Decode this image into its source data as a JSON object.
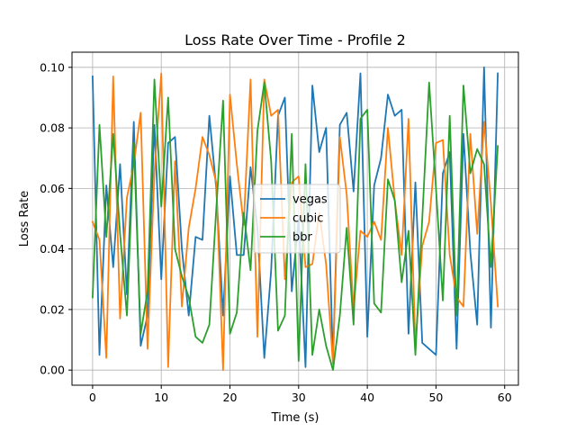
{
  "chart_data": {
    "type": "line",
    "title": "Loss Rate Over Time - Profile 2",
    "xlabel": "Time (s)",
    "ylabel": "Loss Rate",
    "xlim": [
      -3,
      62
    ],
    "ylim": [
      -0.005,
      0.105
    ],
    "x_ticks": [
      0,
      10,
      20,
      30,
      40,
      50,
      60
    ],
    "x_tick_labels": [
      "0",
      "10",
      "20",
      "30",
      "40",
      "50",
      "60"
    ],
    "y_ticks": [
      0.0,
      0.02,
      0.04,
      0.06,
      0.08,
      0.1
    ],
    "y_tick_labels": [
      "0.00",
      "0.02",
      "0.04",
      "0.06",
      "0.08",
      "0.10"
    ],
    "grid": true,
    "legend_position": "center",
    "x": [
      0,
      1,
      2,
      3,
      4,
      5,
      6,
      7,
      8,
      9,
      10,
      11,
      12,
      13,
      14,
      15,
      16,
      17,
      18,
      19,
      20,
      21,
      22,
      23,
      24,
      25,
      26,
      27,
      28,
      29,
      30,
      31,
      32,
      33,
      34,
      35,
      36,
      37,
      38,
      39,
      40,
      41,
      42,
      43,
      44,
      45,
      46,
      47,
      48,
      49,
      50,
      51,
      52,
      53,
      54,
      55,
      56,
      57,
      58,
      59
    ],
    "series": [
      {
        "name": "vegas",
        "color": "#1f77b4",
        "values": [
          0.097,
          0.005,
          0.061,
          0.034,
          0.068,
          0.025,
          0.082,
          0.008,
          0.018,
          0.081,
          0.03,
          0.075,
          0.077,
          0.04,
          0.018,
          0.044,
          0.043,
          0.084,
          0.06,
          0.018,
          0.064,
          0.038,
          0.038,
          0.067,
          0.047,
          0.004,
          0.033,
          0.084,
          0.09,
          0.026,
          0.05,
          0.001,
          0.094,
          0.072,
          0.08,
          0.003,
          0.081,
          0.085,
          0.059,
          0.098,
          0.011,
          0.061,
          0.07,
          0.091,
          0.084,
          0.086,
          0.012,
          0.062,
          0.009,
          0.007,
          0.005,
          0.065,
          0.072,
          0.007,
          0.078,
          0.039,
          0.015,
          0.1,
          0.014,
          0.098
        ]
      },
      {
        "name": "cubic",
        "color": "#ff7f0e",
        "values": [
          0.049,
          0.043,
          0.004,
          0.097,
          0.017,
          0.057,
          0.068,
          0.085,
          0.007,
          0.065,
          0.098,
          0.001,
          0.069,
          0.021,
          0.047,
          0.06,
          0.077,
          0.071,
          0.062,
          0.0,
          0.091,
          0.068,
          0.048,
          0.096,
          0.011,
          0.096,
          0.084,
          0.086,
          0.03,
          0.062,
          0.064,
          0.034,
          0.035,
          0.052,
          0.035,
          0.002,
          0.077,
          0.058,
          0.02,
          0.046,
          0.044,
          0.049,
          0.043,
          0.08,
          0.056,
          0.038,
          0.083,
          0.008,
          0.041,
          0.049,
          0.075,
          0.076,
          0.038,
          0.024,
          0.021,
          0.078,
          0.045,
          0.082,
          0.055,
          0.021
        ]
      },
      {
        "name": "bbr",
        "color": "#2ca02c",
        "values": [
          0.024,
          0.081,
          0.044,
          0.078,
          0.045,
          0.018,
          0.075,
          0.012,
          0.026,
          0.096,
          0.054,
          0.09,
          0.04,
          0.031,
          0.024,
          0.011,
          0.009,
          0.015,
          0.053,
          0.089,
          0.012,
          0.019,
          0.052,
          0.033,
          0.079,
          0.095,
          0.069,
          0.013,
          0.018,
          0.078,
          0.003,
          0.068,
          0.005,
          0.02,
          0.008,
          0.0,
          0.018,
          0.047,
          0.015,
          0.083,
          0.086,
          0.022,
          0.019,
          0.063,
          0.056,
          0.029,
          0.046,
          0.005,
          0.05,
          0.095,
          0.06,
          0.023,
          0.084,
          0.018,
          0.094,
          0.065,
          0.073,
          0.068,
          0.034,
          0.074
        ]
      }
    ]
  }
}
